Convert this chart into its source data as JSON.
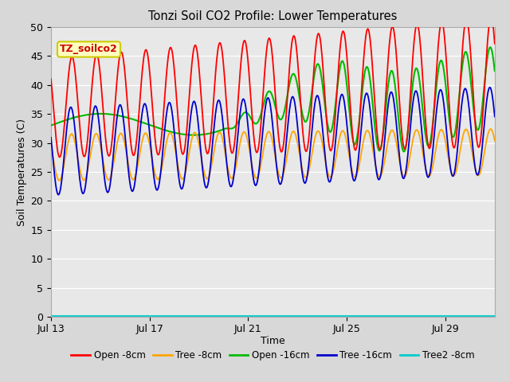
{
  "title": "Tonzi Soil CO2 Profile: Lower Temperatures",
  "xlabel": "Time",
  "ylabel": "Soil Temperatures (C)",
  "ylim": [
    0,
    50
  ],
  "yticks": [
    0,
    5,
    10,
    15,
    20,
    25,
    30,
    35,
    40,
    45,
    50
  ],
  "xlim_days": 18,
  "xtick_positions": [
    0,
    4,
    8,
    12,
    16
  ],
  "xtick_labels": [
    "Jul 13",
    "Jul 17",
    "Jul 21",
    "Jul 25",
    "Jul 29"
  ],
  "colors": {
    "open_8cm": "#ff0000",
    "tree_8cm": "#ffa500",
    "open_16cm": "#00bb00",
    "tree_16cm": "#0000cc",
    "tree2_8cm": "#00cccc"
  },
  "labels": {
    "open_8cm": "Open -8cm",
    "tree_8cm": "Tree -8cm",
    "open_16cm": "Open -16cm",
    "tree_16cm": "Tree -16cm",
    "tree2_8cm": "Tree2 -8cm"
  },
  "fig_bg": "#d8d8d8",
  "plot_bg": "#e8e8e8",
  "grid_color": "#ffffff",
  "watermark_text": "TZ_soilco2",
  "watermark_fg": "#cc0000",
  "watermark_bg": "#ffffc0",
  "watermark_edge": "#cccc00",
  "linewidth": 1.3
}
